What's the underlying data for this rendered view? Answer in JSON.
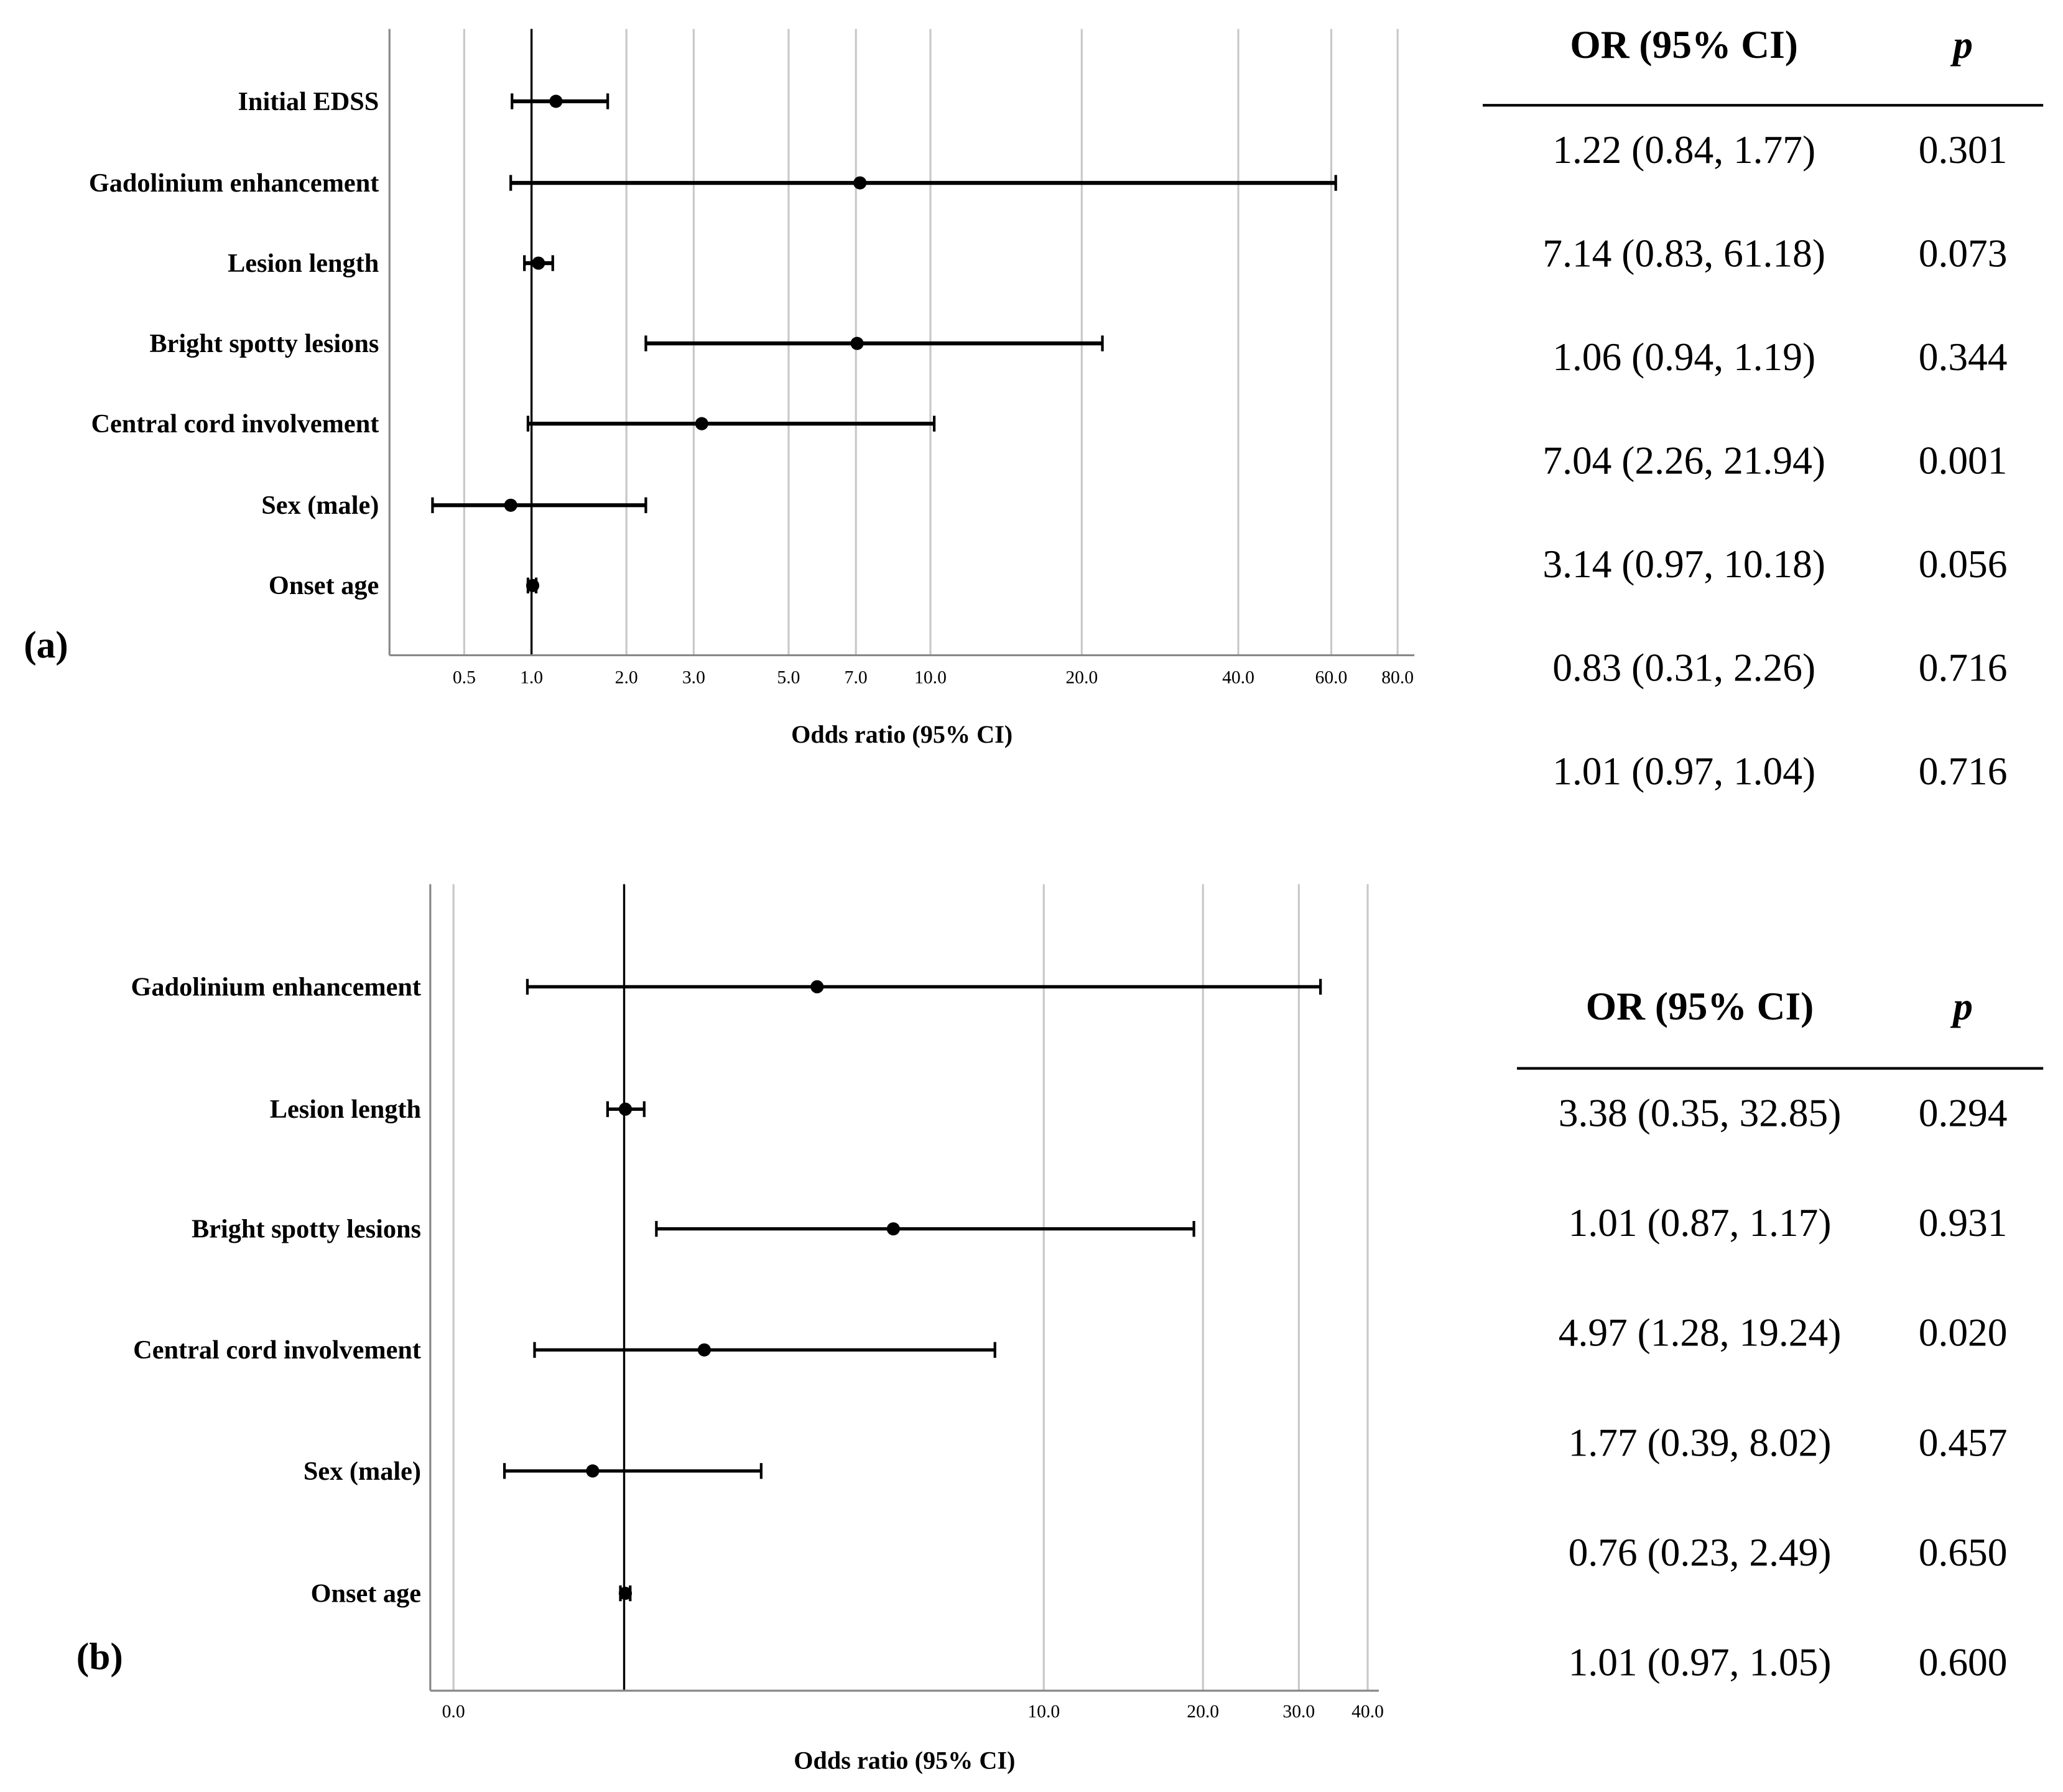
{
  "chart_data": [
    {
      "type": "forest",
      "panel_label": "(a)",
      "xlabel": "Odds ratio (95% CI)",
      "categories": [
        "Initial EDSS",
        "Gadolinium enhancement",
        "Lesion length",
        "Bright spotty lesions",
        "Central cord involvement",
        "Sex (male)",
        "Onset age"
      ],
      "values": [
        1.22,
        7.14,
        1.06,
        7.04,
        3.14,
        0.83,
        1.01
      ],
      "ci_lower": [
        0.84,
        0.83,
        0.94,
        2.26,
        0.97,
        0.31,
        0.97
      ],
      "ci_upper": [
        1.77,
        61.18,
        1.19,
        21.94,
        10.18,
        2.26,
        1.04
      ],
      "xscale": "log",
      "xlim": [
        0.09,
        86
      ],
      "xticks": [
        0.5,
        {
          "value": 1,
          "label": "1.0"
        },
        {
          "value": 2,
          "label": "2.0"
        },
        {
          "value": 3,
          "label": "3.0"
        },
        {
          "value": 5,
          "label": "5.0"
        },
        {
          "value": 7,
          "label": "7.0"
        },
        {
          "value": 10,
          "label": "10.0"
        },
        {
          "value": 20,
          "label": "20.0"
        },
        {
          "value": 40,
          "label": "40.0"
        },
        {
          "value": 60,
          "label": "60.0"
        },
        {
          "value": 80,
          "label": "80.0"
        }
      ],
      "grid": true,
      "reference_line": 1,
      "color": "#000000"
    },
    {
      "type": "forest",
      "panel_label": "(b)",
      "xlabel": "Odds ratio (95% CI)",
      "categories": [
        "Gadolinium enhancement",
        "Lesion length",
        "Bright spotty lesions",
        "Central cord involvement",
        "Sex (male)",
        "Onset age"
      ],
      "values": [
        3.38,
        1.01,
        4.97,
        1.77,
        0.76,
        1.01
      ],
      "ci_lower": [
        0.35,
        0.87,
        1.28,
        0.39,
        0.23,
        0.97
      ],
      "ci_upper": [
        32.85,
        1.17,
        19.24,
        8.02,
        2.49,
        1.05
      ],
      "xscale": "log",
      "xlim": [
        -0.09,
        41.9
      ],
      "xticks": [
        {
          "value": 0,
          "label": "0.0"
        },
        {
          "value": 10,
          "label": "10.0"
        },
        {
          "value": 20,
          "label": "20.0"
        },
        {
          "value": 30,
          "label": "30.0"
        },
        {
          "value": 40,
          "label": "40.0"
        }
      ],
      "grid": true,
      "reference_line": 1,
      "color": "#000000"
    }
  ],
  "tables": [
    {
      "header": [
        "OR (95% CI)",
        "p"
      ],
      "rows": [
        [
          "1.22 (0.84, 1.77)",
          "0.301"
        ],
        [
          "7.14 (0.83, 61.18)",
          "0.073"
        ],
        [
          "1.06 (0.94, 1.19)",
          "0.344"
        ],
        [
          "7.04 (2.26, 21.94)",
          "0.001"
        ],
        [
          "3.14 (0.97, 10.18)",
          "0.056"
        ],
        [
          "0.83 (0.31, 2.26)",
          "0.716"
        ],
        [
          "1.01 (0.97, 1.04)",
          "0.716"
        ]
      ]
    },
    {
      "header": [
        "OR (95% CI)",
        "p"
      ],
      "rows": [
        [
          "3.38 (0.35, 32.85)",
          "0.294"
        ],
        [
          "1.01 (0.87, 1.17)",
          "0.931"
        ],
        [
          "4.97 (1.28, 19.24)",
          "0.020"
        ],
        [
          "1.77 (0.39, 8.02)",
          "0.457"
        ],
        [
          "0.76 (0.23, 2.49)",
          "0.650"
        ],
        [
          "1.01 (0.97, 1.05)",
          "0.600"
        ]
      ]
    }
  ]
}
